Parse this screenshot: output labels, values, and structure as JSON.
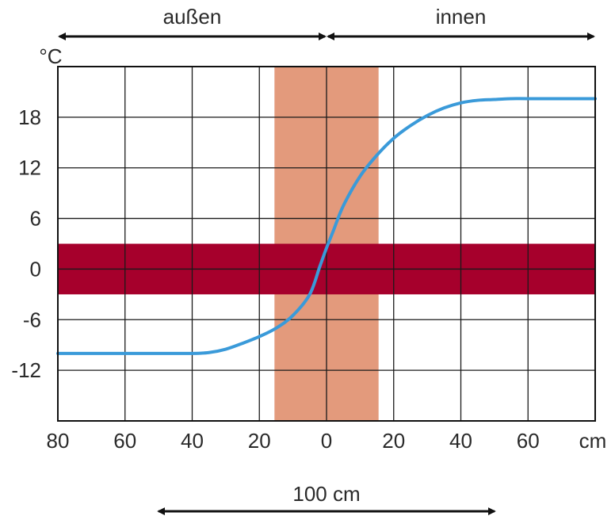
{
  "chart_data": {
    "type": "line",
    "title": "",
    "xlabel": "",
    "ylabel": "",
    "y_unit_label": "°C",
    "x_unit_label": "cm",
    "grid": true,
    "xlim": [
      -80,
      80
    ],
    "ylim": [
      -18,
      24
    ],
    "x_tick_values": [
      -80,
      -60,
      -40,
      -20,
      0,
      20,
      40,
      60
    ],
    "x_tick_labels": [
      "80",
      "60",
      "40",
      "20",
      "0",
      "20",
      "40",
      "60"
    ],
    "x_extra_gridlines": [
      80
    ],
    "y_ticks": [
      18,
      12,
      6,
      0,
      -6,
      -12
    ],
    "y_extra_gridlines": [
      -18,
      24
    ],
    "series": [
      {
        "color": "#3a9ad9",
        "x": [
          -80,
          -70,
          -60,
          -50,
          -40,
          -35,
          -30,
          -25,
          -20,
          -15,
          -10,
          -5,
          -2,
          0,
          2,
          5,
          10,
          15,
          20,
          25,
          30,
          35,
          40,
          45,
          50,
          55,
          60,
          70,
          80
        ],
        "y": [
          -10,
          -10,
          -10,
          -10,
          -10,
          -9.9,
          -9.5,
          -8.8,
          -8,
          -7,
          -5.5,
          -3,
          0.3,
          2.5,
          4.5,
          7.5,
          11,
          13.5,
          15.5,
          17,
          18.2,
          19.1,
          19.7,
          20,
          20.1,
          20.2,
          20.2,
          20.2,
          20.2
        ]
      }
    ],
    "bands": [
      {
        "orientation": "vertical",
        "from": -15.5,
        "to": 15.5,
        "color": "#e39a7c"
      },
      {
        "orientation": "horizontal",
        "from": -3,
        "to": 3,
        "color": "#a6002c"
      }
    ],
    "annotations": {
      "outside_label": "außen",
      "inside_label": "innen",
      "outside_range": [
        -80,
        0
      ],
      "inside_range": [
        0,
        80
      ],
      "width_label": "100 cm",
      "width_range": [
        -50,
        50
      ]
    }
  }
}
